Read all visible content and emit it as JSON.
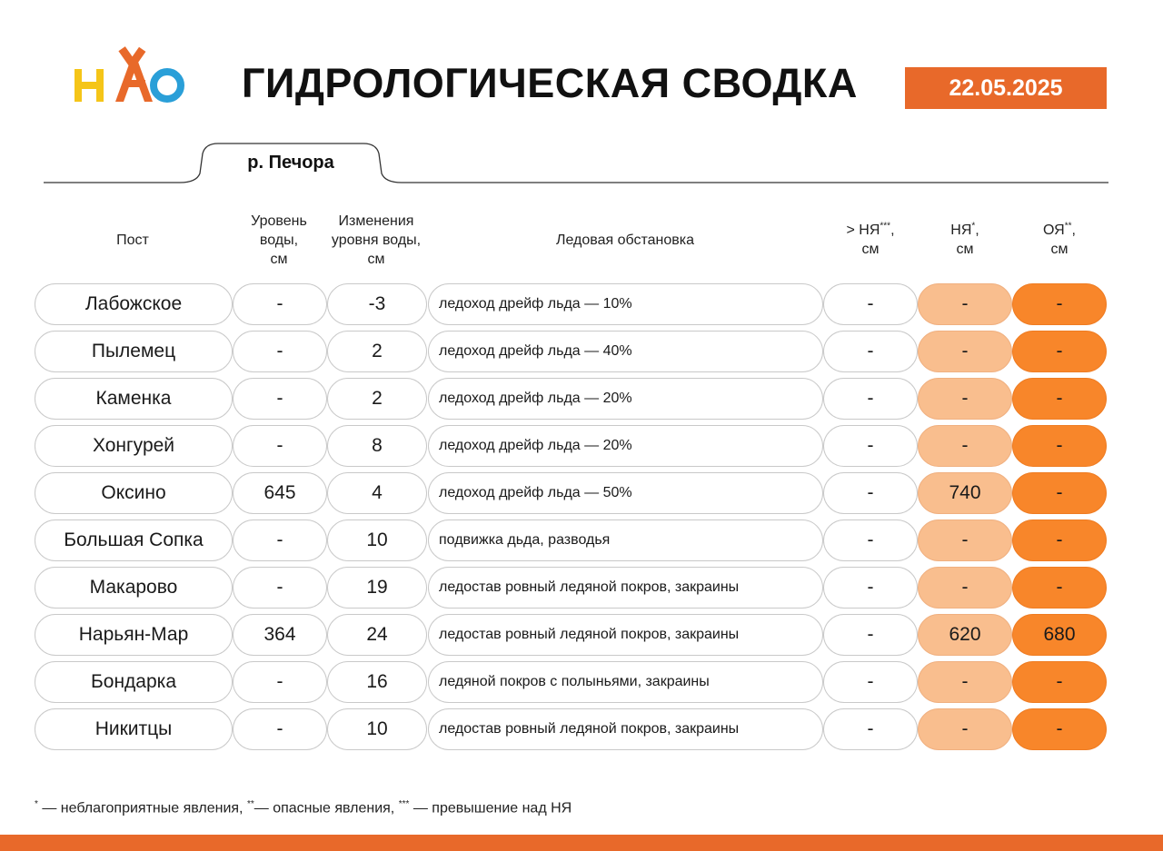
{
  "header": {
    "logo_text": "НАО",
    "title": "ГИДРОЛОГИЧЕСКАЯ СВОДКА",
    "date": "22.05.2025"
  },
  "tab": {
    "label": "р. Печора"
  },
  "columns": {
    "post": "Пост",
    "level": [
      "Уровень",
      "воды,",
      "см"
    ],
    "change": [
      "Изменения",
      "уровня воды,",
      "см"
    ],
    "ice": "Ледовая обстановка",
    "over": {
      "main": "> НЯ",
      "sup": "***",
      "unit": "см"
    },
    "nya": {
      "main": "НЯ",
      "sup": "*",
      "unit": "см"
    },
    "oya": {
      "main": "ОЯ",
      "sup": "**",
      "unit": "см"
    }
  },
  "rows": [
    {
      "post": "Лабожское",
      "level": "-",
      "change": "-3",
      "ice": "ледоход дрейф льда — 10%",
      "over": "-",
      "nya": "-",
      "oya": "-"
    },
    {
      "post": "Пылемец",
      "level": "-",
      "change": "2",
      "ice": "ледоход дрейф льда — 40%",
      "over": "-",
      "nya": "-",
      "oya": "-"
    },
    {
      "post": "Каменка",
      "level": "-",
      "change": "2",
      "ice": "ледоход дрейф льда — 20%",
      "over": "-",
      "nya": "-",
      "oya": "-"
    },
    {
      "post": "Хонгурей",
      "level": "-",
      "change": "8",
      "ice": "ледоход дрейф льда — 20%",
      "over": "-",
      "nya": "-",
      "oya": "-"
    },
    {
      "post": "Оксино",
      "level": "645",
      "change": "4",
      "ice": "ледоход дрейф льда — 50%",
      "over": "-",
      "nya": "740",
      "oya": "-"
    },
    {
      "post": "Большая Сопка",
      "level": "-",
      "change": "10",
      "ice": "подвижка дьда, разводья",
      "over": "-",
      "nya": "-",
      "oya": "-"
    },
    {
      "post": "Макарово",
      "level": "-",
      "change": "19",
      "ice": "ледостав ровный ледяной покров, закраины",
      "over": "-",
      "nya": "-",
      "oya": "-"
    },
    {
      "post": "Нарьян-Мар",
      "level": "364",
      "change": "24",
      "ice": "ледостав ровный ледяной покров, закраины",
      "over": "-",
      "nya": "620",
      "oya": "680"
    },
    {
      "post": "Бондарка",
      "level": "-",
      "change": "16",
      "ice": "ледяной покров с полыньями, закраины",
      "over": "-",
      "nya": "-",
      "oya": "-"
    },
    {
      "post": "Никитцы",
      "level": "-",
      "change": "10",
      "ice": "ледостав ровный ледяной покров, закраины",
      "over": "-",
      "nya": "-",
      "oya": "-"
    }
  ],
  "footnote": {
    "s1": "*",
    "t1": " — неблагоприятные явления, ",
    "s2": "**",
    "t2": "— опасные явления, ",
    "s3": "***",
    "t3": " — превышение над НЯ"
  },
  "colors": {
    "accent": "#e8692a",
    "nya_fill": "#f9be8e",
    "oya_fill": "#f8862a",
    "logo_yellow": "#f5c518",
    "logo_orange": "#e8692a",
    "logo_blue": "#2a9fd8"
  }
}
